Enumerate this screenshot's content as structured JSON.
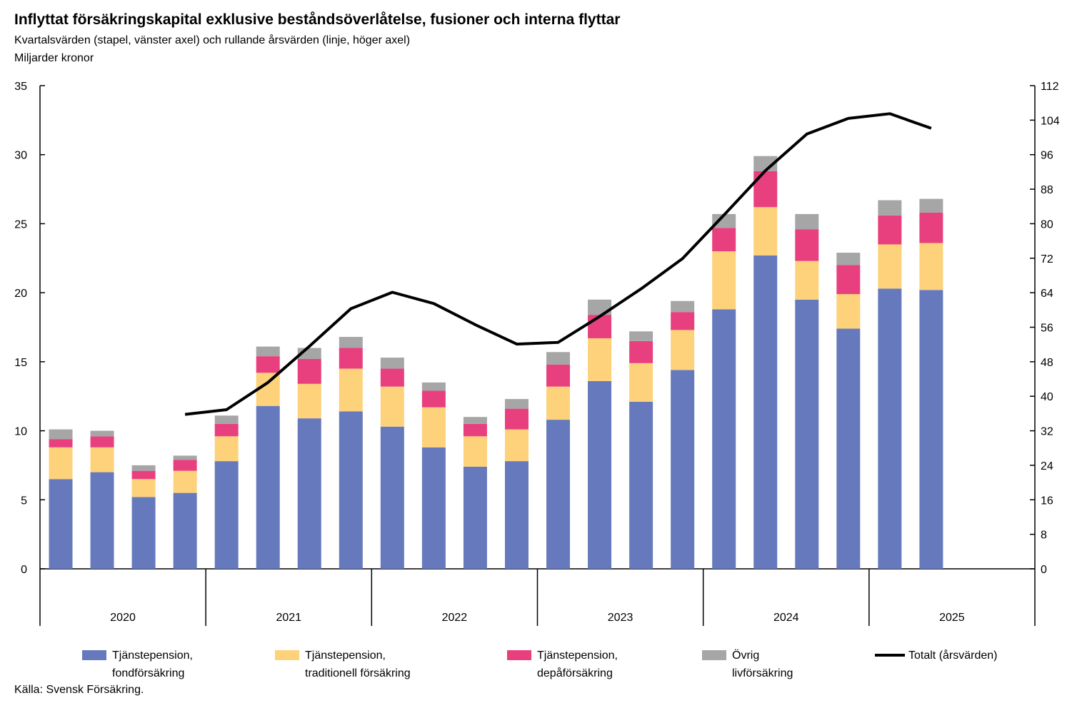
{
  "title": "Inflyttat försäkringskapital exklusive beståndsöverlåtelse, fusioner och interna flyttar",
  "subtitle": "Kvartalsvärden (stapel, vänster axel) och rullande årsvärden (linje, höger axel)",
  "unit": "Miljarder kronor",
  "source": "Källa: Svensk Försäkring.",
  "chart_data": {
    "type": "bar",
    "stacked": true,
    "years": [
      "2020",
      "2021",
      "2022",
      "2023",
      "2024",
      "2025"
    ],
    "quarters_per_year": 4,
    "left_axis": {
      "min": 0,
      "max": 35,
      "step": 5,
      "ticks": [
        "0",
        "5",
        "10",
        "15",
        "20",
        "25",
        "30",
        "35"
      ]
    },
    "right_axis": {
      "min": 0,
      "max": 112,
      "step": 8,
      "ticks": [
        "0",
        "8",
        "16",
        "24",
        "32",
        "40",
        "48",
        "56",
        "64",
        "72",
        "80",
        "88",
        "96",
        "104",
        "112"
      ]
    },
    "series": [
      {
        "name": "Tjänstepension,\nfondförsäkring",
        "color": "#6679bd",
        "values": [
          6.5,
          7.0,
          5.2,
          5.5,
          7.8,
          11.8,
          10.9,
          11.4,
          10.3,
          8.8,
          7.4,
          7.8,
          10.8,
          13.6,
          12.1,
          14.4,
          18.8,
          22.7,
          19.5,
          17.4,
          20.3,
          20.2
        ]
      },
      {
        "name": "Tjänstepension,\ntraditionell försäkring",
        "color": "#fdd27a",
        "values": [
          2.3,
          1.8,
          1.3,
          1.6,
          1.8,
          2.4,
          2.5,
          3.1,
          2.9,
          2.9,
          2.2,
          2.3,
          2.4,
          3.1,
          2.8,
          2.9,
          4.2,
          3.5,
          2.8,
          2.5,
          3.2,
          3.4
        ]
      },
      {
        "name": "Tjänstepension,\ndepåförsäkring",
        "color": "#e8407e",
        "values": [
          0.6,
          0.8,
          0.6,
          0.8,
          0.9,
          1.2,
          1.8,
          1.5,
          1.3,
          1.2,
          0.9,
          1.5,
          1.6,
          1.7,
          1.6,
          1.3,
          1.7,
          2.6,
          2.3,
          2.1,
          2.1,
          2.2
        ]
      },
      {
        "name": "Övrig\nlivförsäkring",
        "color": "#a6a6a6",
        "values": [
          0.7,
          0.4,
          0.4,
          0.3,
          0.6,
          0.7,
          0.8,
          0.8,
          0.8,
          0.6,
          0.5,
          0.7,
          0.9,
          1.1,
          0.7,
          0.8,
          1.0,
          1.1,
          1.1,
          0.9,
          1.1,
          1.0
        ]
      }
    ],
    "line_series": {
      "name": "Totalt (årsvärden)",
      "color": "#000000",
      "axis": "right",
      "start_index": 3,
      "values": [
        35.8,
        36.9,
        43.2,
        51.6,
        60.3,
        64.1,
        61.5,
        56.6,
        52.1,
        52.5,
        58.5,
        64.9,
        71.9,
        82.0,
        92.3,
        100.8,
        104.4,
        105.5,
        102.1
      ]
    },
    "xlabel": "",
    "ylabel": "",
    "legend_position": "bottom"
  }
}
